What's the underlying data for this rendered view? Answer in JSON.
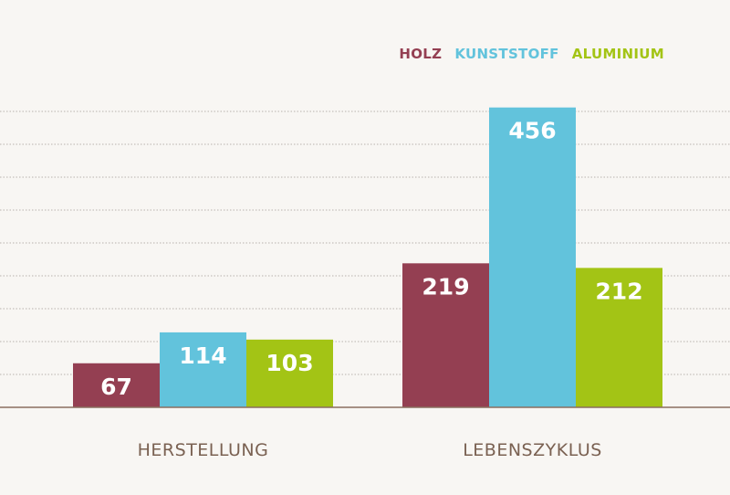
{
  "chart_data": {
    "type": "bar",
    "categories": [
      "HERSTELLUNG",
      "LEBENSZYKLUS"
    ],
    "series": [
      {
        "name": "HOLZ",
        "values": [
          67,
          219
        ],
        "color": "#943f52"
      },
      {
        "name": "KUNSTSTOFF",
        "values": [
          114,
          456
        ],
        "color": "#62c3dc"
      },
      {
        "name": "ALUMINIUM",
        "values": [
          103,
          212
        ],
        "color": "#a3c415"
      }
    ],
    "title": "",
    "xlabel": "",
    "ylabel": "",
    "ylim": [
      0,
      500
    ],
    "grid": true,
    "legend": "top-right",
    "colors": {
      "grid": "#b9b3ad",
      "baseline": "#8a6e60",
      "category_text": "#7a6152",
      "value_text": "#ffffff",
      "background": "#f8f6f3"
    }
  }
}
